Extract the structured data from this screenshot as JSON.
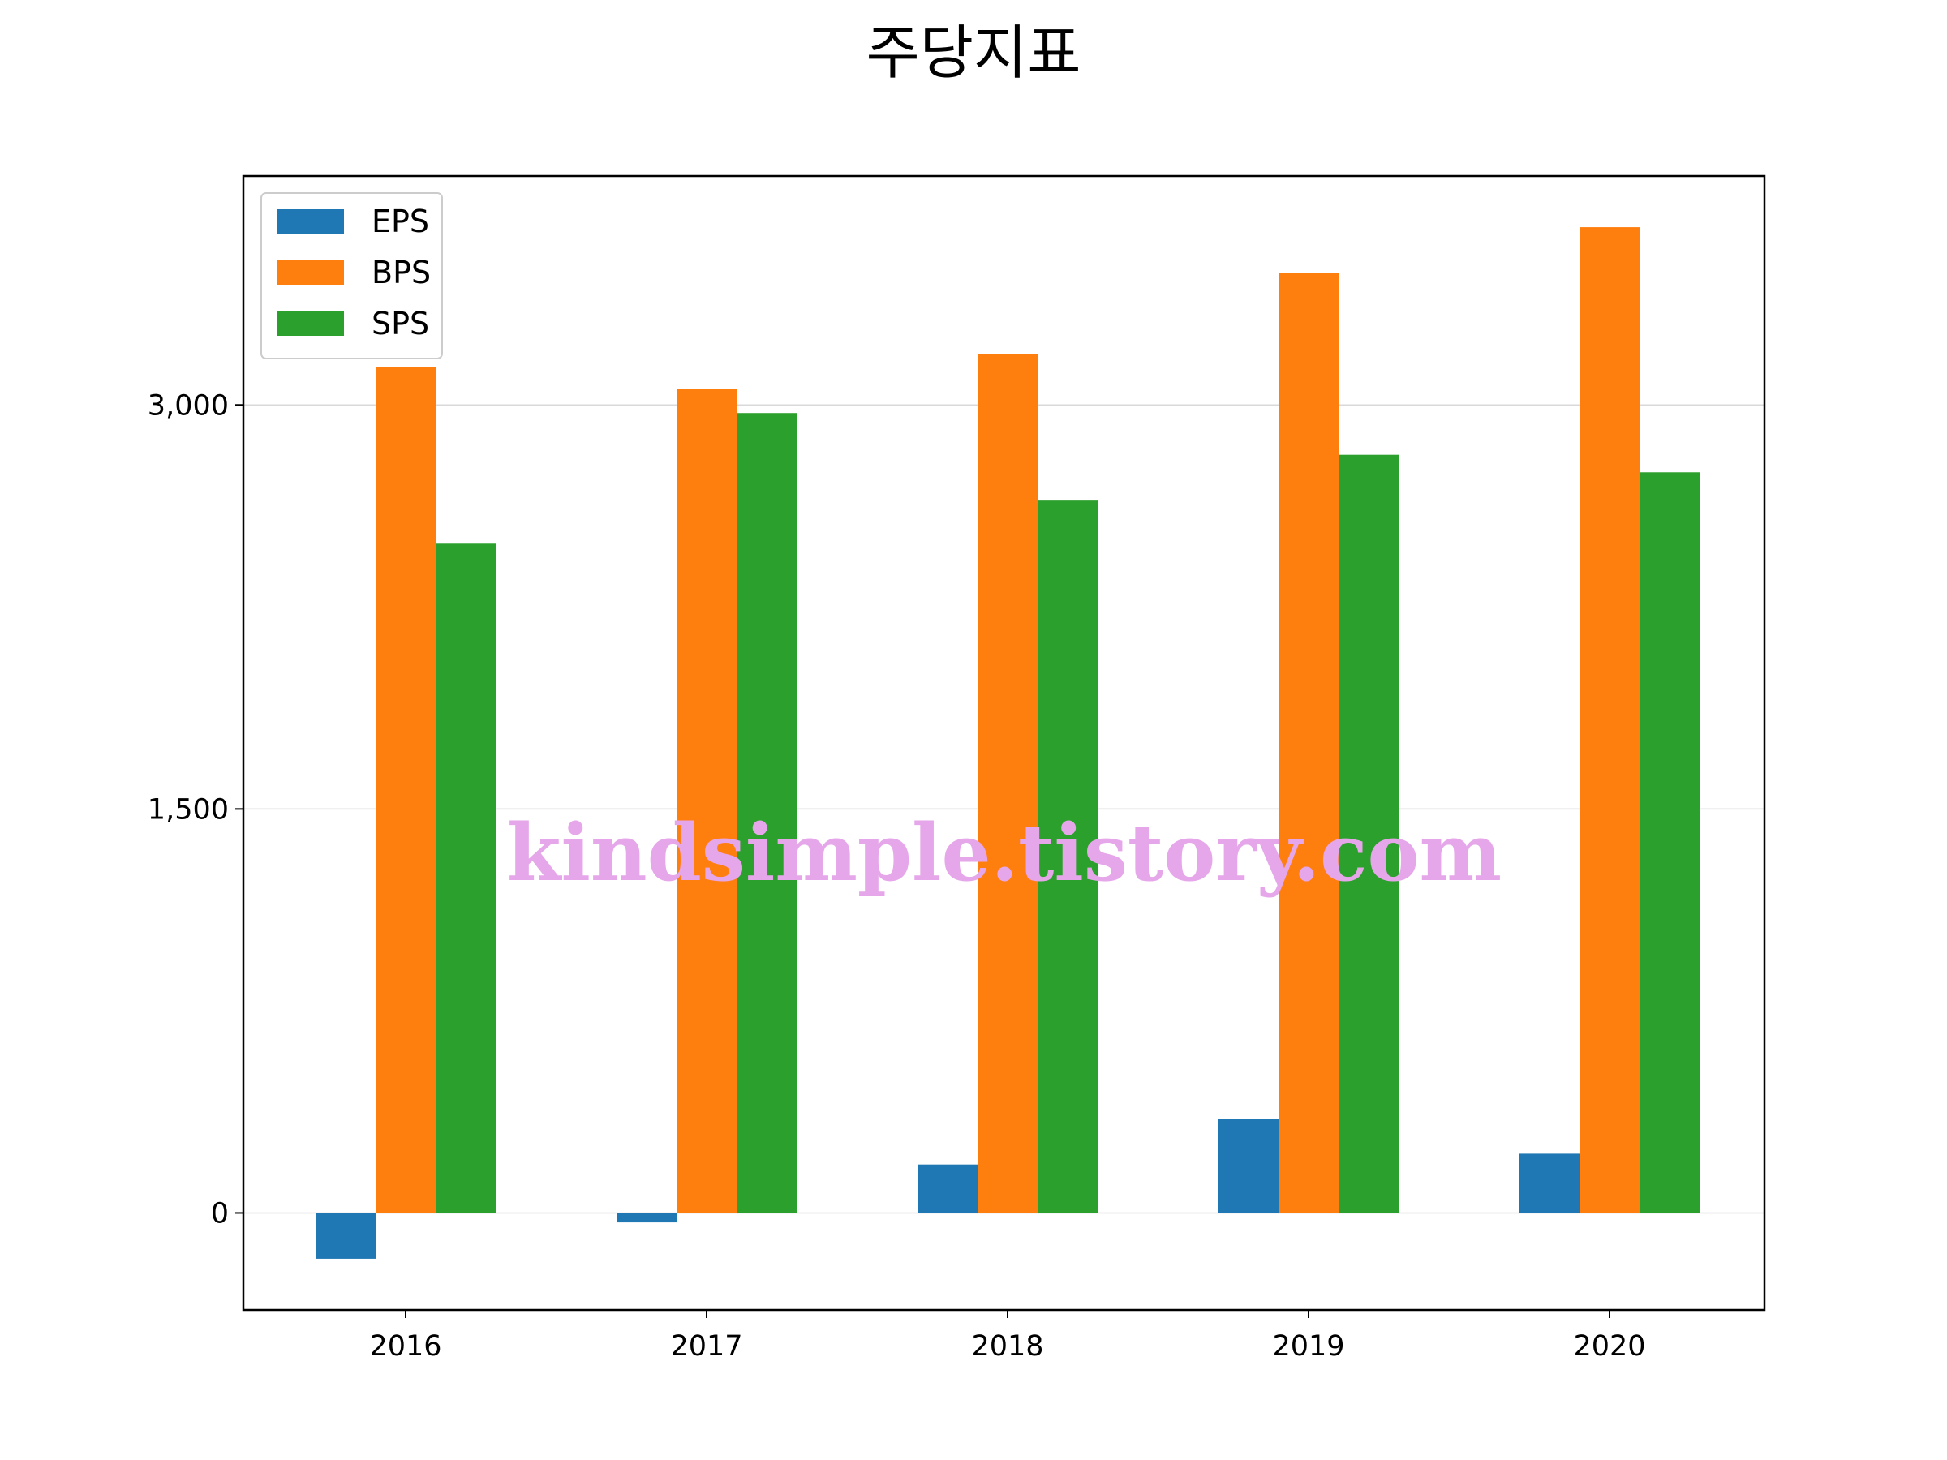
{
  "chart_data": {
    "type": "bar",
    "title": "주당지표",
    "xlabel": "",
    "ylabel": "",
    "categories": [
      "2016",
      "2017",
      "2018",
      "2019",
      "2020"
    ],
    "series": [
      {
        "name": "EPS",
        "color": "#1f77b4",
        "values": [
          -170,
          -35,
          180,
          350,
          220
        ]
      },
      {
        "name": "BPS",
        "color": "#ff7f0e",
        "values": [
          3140,
          3060,
          3190,
          3490,
          3660
        ]
      },
      {
        "name": "SPS",
        "color": "#2ca02c",
        "values": [
          2485,
          2970,
          2645,
          2815,
          2750
        ]
      }
    ],
    "ylim": [
      -360,
      3850
    ],
    "yticks": [
      {
        "value": 0,
        "label": "0"
      },
      {
        "value": 1500,
        "label": "1,500"
      },
      {
        "value": 3000,
        "label": "3,000"
      }
    ],
    "grid": "horizontal",
    "legend_position": "top-left",
    "watermark": "kindsimple.tistory.com"
  }
}
